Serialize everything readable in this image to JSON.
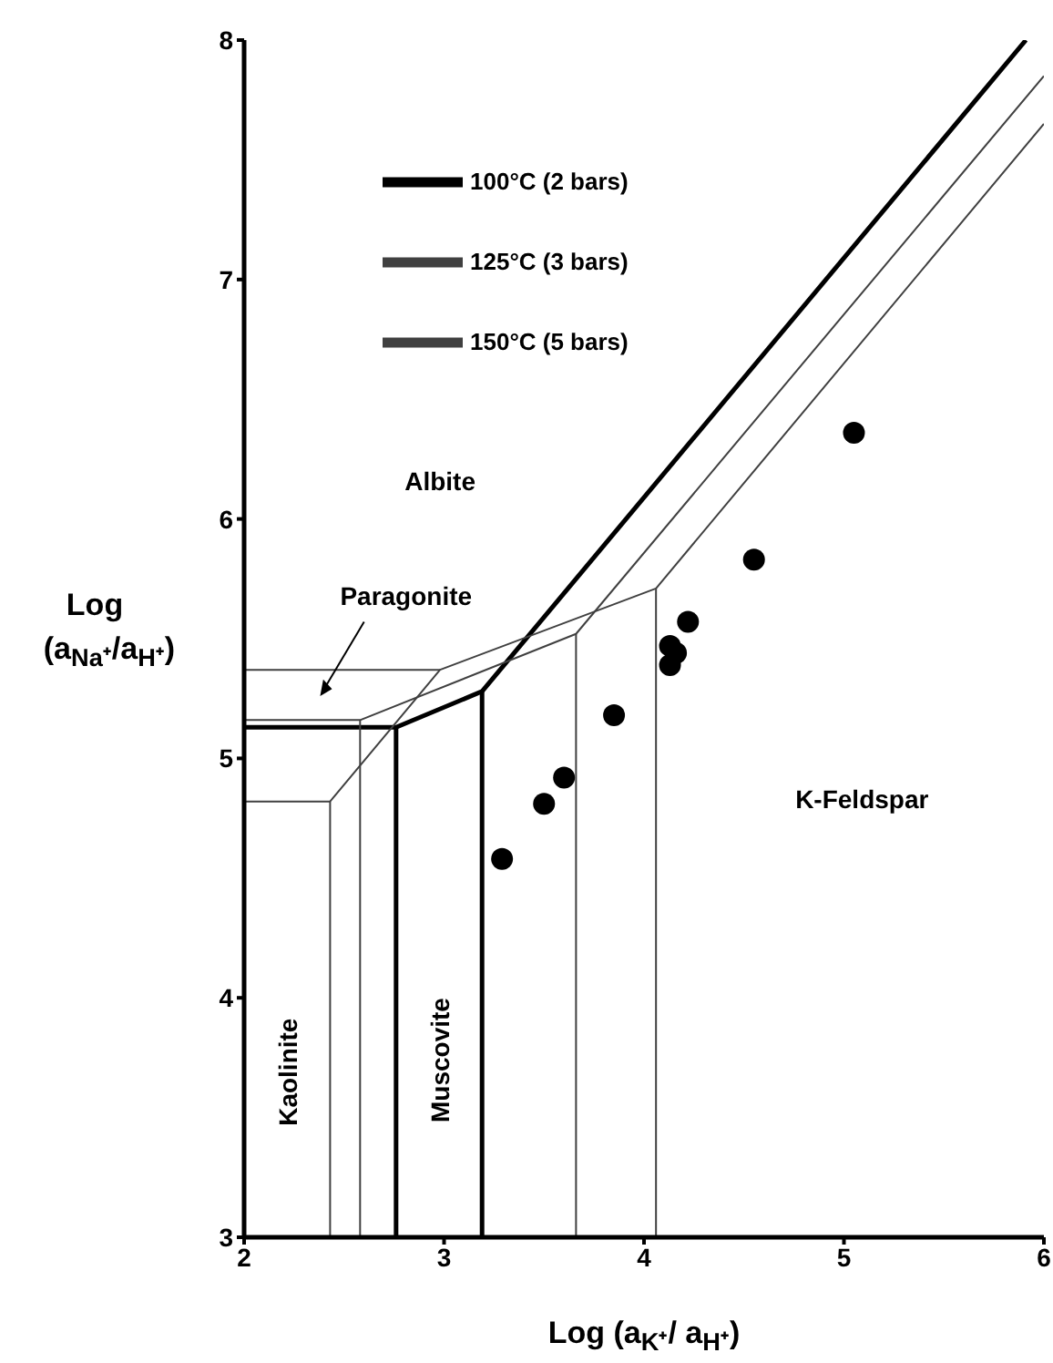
{
  "chart_data": {
    "type": "line",
    "xlabel": "Log (a$_{K⁺}$/ a$_{H⁺}$)",
    "ylabel": "Log (a$_{Na⁺}$/a$_{H⁺}$)",
    "xlim": [
      2,
      6
    ],
    "xticks": [
      2,
      3,
      4,
      5,
      6
    ],
    "ylim": [
      3,
      8
    ],
    "yticks": [
      3,
      4,
      5,
      6,
      7,
      8
    ],
    "legend": "top left",
    "series": [
      {
        "name": "100°C (2 bars)",
        "marker": "none",
        "color": "#000000",
        "x": [
          2,
          2.76,
          3.19,
          5.91
        ],
        "values": [
          5.13,
          5.13,
          5.28,
          8
        ]
      },
      {
        "name": "125°C (3 bars)",
        "marker": "none",
        "color": "#404040",
        "x": [
          2,
          2.58,
          3.66,
          6
        ],
        "values": [
          5.16,
          5.16,
          5.52,
          7.85
        ]
      },
      {
        "name": "150°C (5 bars)",
        "marker": "none",
        "color": "#404040",
        "x": [
          2,
          2.43,
          2.98,
          4.06,
          6
        ],
        "values": [
          4.82,
          4.82,
          5.37,
          5.71,
          7.65
        ]
      },
      {
        "marker": "none",
        "color": "#000000",
        "x": [
          2.76,
          2.76
        ],
        "values": [
          5.13,
          3
        ]
      },
      {
        "marker": "none",
        "color": "#000000",
        "x": [
          3.19,
          3.19
        ],
        "values": [
          5.28,
          3
        ]
      },
      {
        "marker": "none",
        "color": "#404040",
        "x": [
          2.58,
          2.58
        ],
        "values": [
          5.16,
          3
        ]
      },
      {
        "marker": "none",
        "color": "#404040",
        "x": [
          3.66,
          3.66
        ],
        "values": [
          5.52,
          3
        ]
      },
      {
        "marker": "none",
        "color": "#404040",
        "x": [
          2,
          2.98
        ],
        "values": [
          5.37,
          5.37
        ]
      },
      {
        "marker": "none",
        "color": "#404040",
        "x": [
          2.43,
          2.43
        ],
        "values": [
          4.82,
          3
        ]
      },
      {
        "marker": "none",
        "color": "#404040",
        "x": [
          4.06,
          4.06
        ],
        "values": [
          5.71,
          3
        ]
      },
      {
        "type": "scatter",
        "marker": "circle",
        "color": "#000000",
        "x": [
          3.29,
          3.5,
          3.6,
          3.85,
          4.13,
          4.16,
          4.13,
          4.22,
          4.55,
          5.05
        ],
        "values": [
          4.58,
          4.81,
          4.92,
          5.18,
          5.39,
          5.44,
          5.47,
          5.57,
          5.83,
          6.36
        ]
      }
    ],
    "annotations": [
      "Albite",
      "Paragonite",
      "K-Feldspar",
      "Kaolinite",
      "Muscovite"
    ]
  }
}
